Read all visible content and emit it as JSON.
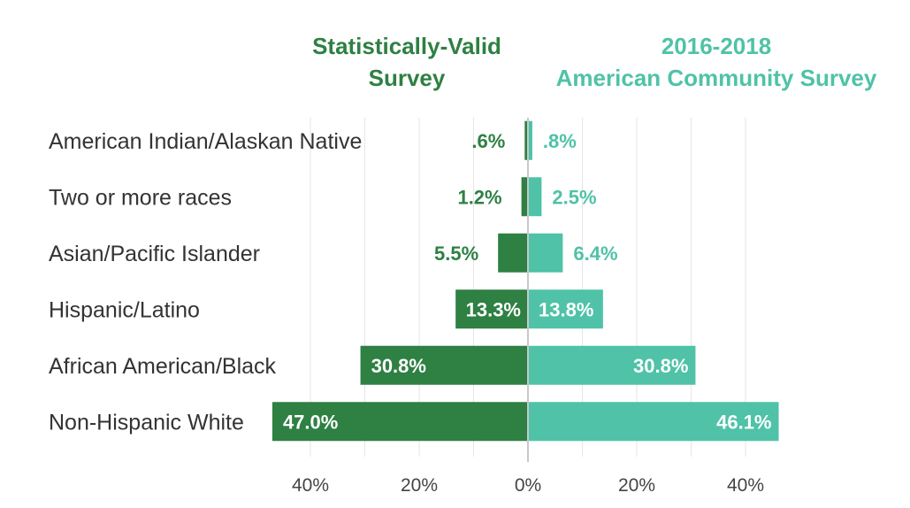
{
  "colors": {
    "survey": "#2e8043",
    "acs": "#4fc2a7",
    "grid": "#e6e6e6",
    "axis": "#c8c8c8",
    "label_text": "#333333",
    "tick_text": "#444444"
  },
  "chart_data": {
    "type": "bar",
    "orientation": "horizontal",
    "layout": "diverging",
    "categories": [
      "American Indian/Alaskan Native",
      "Two or more races",
      "Asian/Pacific Islander",
      "Hispanic/Latino",
      "African American/Black",
      "Non-Hispanic White"
    ],
    "series": [
      {
        "name": "Statistically-Valid Survey",
        "name_lines": [
          "Statistically-Valid",
          "Survey"
        ],
        "side": "left",
        "values": [
          0.6,
          1.2,
          5.5,
          13.3,
          30.8,
          47.0
        ],
        "value_labels": [
          ".6%",
          "1.2%",
          "5.5%",
          "13.3%",
          "30.8%",
          "47.0%"
        ]
      },
      {
        "name": "2016-2018 American Community Survey",
        "name_lines": [
          "2016-2018",
          "American Community Survey"
        ],
        "side": "right",
        "values": [
          0.8,
          2.5,
          6.4,
          13.8,
          30.8,
          46.1
        ],
        "value_labels": [
          ".8%",
          "2.5%",
          "6.4%",
          "13.8%",
          "30.8%",
          "46.1%"
        ]
      }
    ],
    "xlim": [
      -47,
      47
    ],
    "x_ticks": [
      -40,
      -20,
      0,
      20,
      40
    ],
    "x_tick_labels": [
      "40%",
      "20%",
      "0%",
      "20%",
      "40%"
    ],
    "grid": true
  }
}
